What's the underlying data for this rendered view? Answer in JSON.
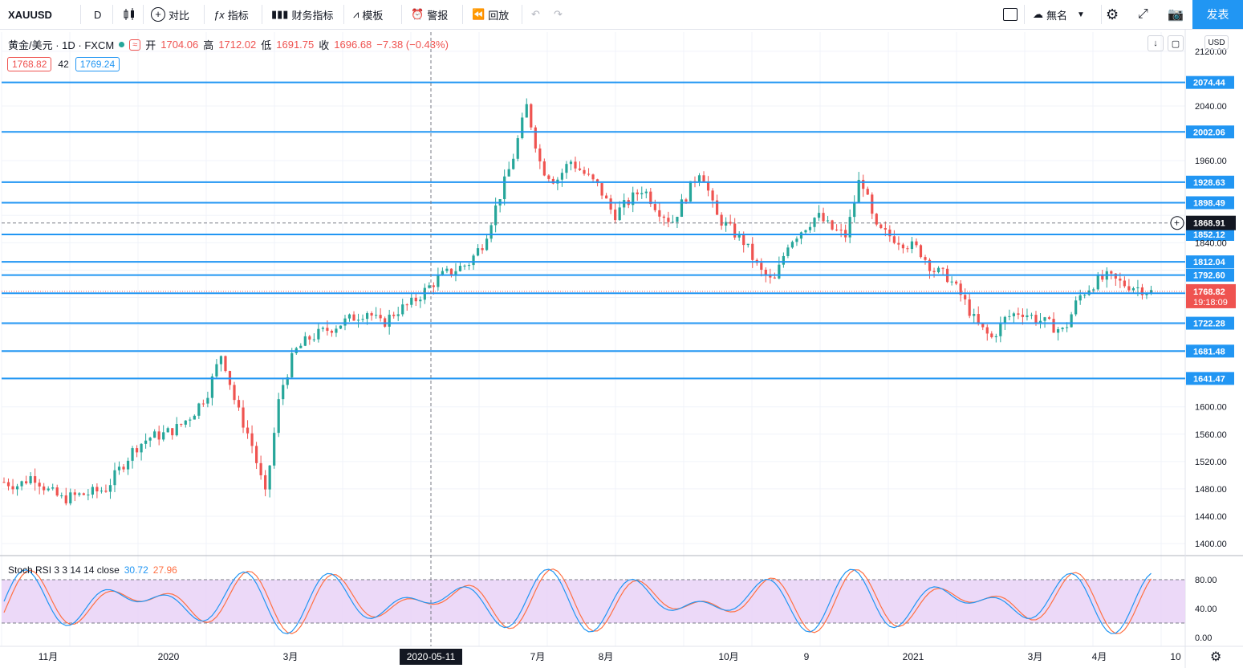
{
  "toolbar": {
    "symbol": "XAUUSD",
    "interval": "D",
    "compare": "对比",
    "indicators": "指标",
    "financials": "财务指标",
    "templates": "模板",
    "alert": "警报",
    "replay": "回放",
    "layout_name": "無名",
    "publish": "发表"
  },
  "legend": {
    "name": "黄金/美元 · 1D · FXCM",
    "open_label": "开",
    "open": "1704.06",
    "high_label": "高",
    "high": "1712.02",
    "low_label": "低",
    "low": "1691.75",
    "close_label": "收",
    "close": "1696.68",
    "change": "−7.38 (−0.43%)"
  },
  "bidask": {
    "bid": "1768.82",
    "spread": "42",
    "ask": "1769.24"
  },
  "rsi": {
    "label": "Stoch RSI 3 3 14 14 close",
    "k": "30.72",
    "d": "27.96"
  },
  "currency": "USD",
  "price_axis": [
    "2120.00",
    "2040.00",
    "1960.00",
    "1840.00",
    "1600.00",
    "1560.00",
    "1520.00",
    "1480.00",
    "1440.00",
    "1400.00"
  ],
  "hlines": [
    "2074.44",
    "2002.06",
    "1928.63",
    "1898.49",
    "1852.12",
    "1812.04",
    "1792.60",
    "1766.11",
    "1722.28",
    "1681.48",
    "1641.47"
  ],
  "crosshair_price": "1868.91",
  "last_price": "1768.82",
  "countdown": "19:18:09",
  "rsi_axis": [
    "80.00",
    "40.00",
    "0.00"
  ],
  "time_axis": [
    "11月",
    "2020",
    "3月",
    "7月",
    "8月",
    "10月",
    "9",
    "2021",
    "3月",
    "4月",
    "10"
  ],
  "crosshair_date": "2020-05-11",
  "colors": {
    "up": "#26a69a",
    "down": "#ef5350",
    "line": "#2196f3",
    "rsi_k": "#2196f3",
    "rsi_d": "#ff7043"
  },
  "chart_data": {
    "type": "line",
    "title": "黄金/美元 · 1D · FXCM",
    "xlabel": "",
    "ylabel": "",
    "ylim": [
      1400,
      2130
    ],
    "x_ticks": [
      "11月",
      "2020",
      "3月",
      "7月",
      "8月",
      "10月",
      "9",
      "2021",
      "3月",
      "4月",
      "10"
    ],
    "series": [
      {
        "name": "",
        "values": [
          1490,
          1485,
          1500,
          1478,
          1465,
          1470,
          1474,
          1480,
          1510,
          1540,
          1555,
          1560,
          1570,
          1590,
          1620,
          1680,
          1600,
          1550,
          1470,
          1620,
          1680,
          1700,
          1710,
          1720,
          1730,
          1740,
          1720,
          1740,
          1750,
          1770,
          1790,
          1800,
          1810,
          1840,
          1900,
          1960,
          2040,
          1950,
          1930,
          1960,
          1940,
          1920,
          1880,
          1900,
          1920,
          1890,
          1870,
          1910,
          1950,
          1880,
          1860,
          1840,
          1800,
          1780,
          1840,
          1860,
          1880,
          1860,
          1850,
          1940,
          1860,
          1850,
          1840,
          1830,
          1800,
          1790,
          1760,
          1720,
          1700,
          1730,
          1740,
          1730,
          1720,
          1710,
          1760,
          1780,
          1790,
          1780,
          1775,
          1768
        ]
      }
    ]
  }
}
